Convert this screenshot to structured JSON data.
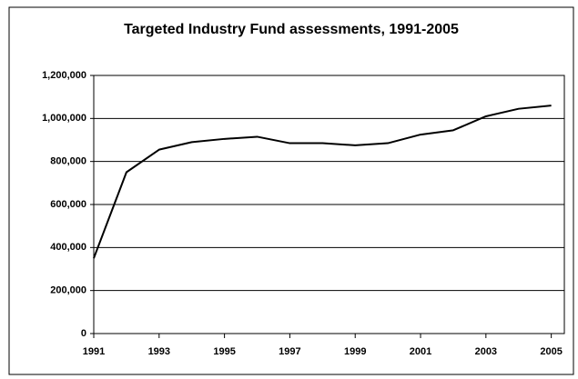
{
  "chart_data": {
    "type": "line",
    "title": "Targeted Industry Fund assessments, 1991-2005",
    "x": [
      1991,
      1992,
      1993,
      1994,
      1995,
      1996,
      1997,
      1998,
      1999,
      2000,
      2001,
      2002,
      2003,
      2004,
      2005
    ],
    "values": [
      350000,
      750000,
      855000,
      890000,
      905000,
      915000,
      885000,
      885000,
      875000,
      885000,
      925000,
      945000,
      1010000,
      1045000,
      1060000
    ],
    "color": "#000000",
    "xlim": [
      1991,
      2005.4
    ],
    "xticks": [
      1991,
      1993,
      1995,
      1997,
      1999,
      2001,
      2003,
      2005
    ],
    "ylim": [
      0,
      1200000
    ],
    "yticks": [
      0,
      {
        "value": 200000,
        "label": "200,000"
      },
      {
        "value": 400000,
        "label": "400,000"
      },
      {
        "value": 600000,
        "label": "600,000"
      },
      {
        "value": 800000,
        "label": "800,000"
      },
      {
        "value": 1000000,
        "label": "1,000,000"
      },
      {
        "value": 1200000,
        "label": "1,200,000"
      }
    ],
    "grid": true
  }
}
